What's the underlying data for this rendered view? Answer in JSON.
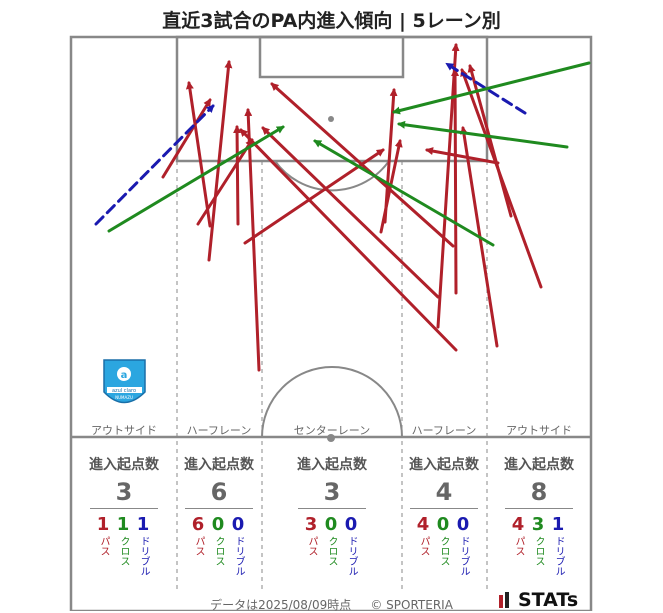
{
  "title": "直近3試合のPA内進入傾向 | 5レーン別",
  "footer": {
    "date_text": "データは2025/08/09時点",
    "copyright": "© SPORTERIA",
    "brand": "STATs"
  },
  "team_logo": {
    "name": "azul claro",
    "sub": "NUMAZU",
    "icon": "azul-claro-crest"
  },
  "colors": {
    "pass": "#b0202a",
    "cross": "#1f8a1f",
    "dribble": "#1a1ab0",
    "pitch_line": "#888888"
  },
  "stat_labels": {
    "header": "進入起点数",
    "pass": "パス",
    "cross": "クロス",
    "dribble": "ドリブル"
  },
  "chart_data": {
    "type": "flow-map",
    "title": "直近3試合のPA内進入傾向 | 5レーン別",
    "lanes": [
      {
        "name": "アウトサイド",
        "total": 3,
        "pass": 1,
        "cross": 1,
        "dribble": 1
      },
      {
        "name": "ハーフレーン",
        "total": 6,
        "pass": 6,
        "cross": 0,
        "dribble": 0
      },
      {
        "name": "センターレーン",
        "total": 3,
        "pass": 3,
        "cross": 0,
        "dribble": 0
      },
      {
        "name": "ハーフレーン",
        "total": 4,
        "pass": 4,
        "cross": 0,
        "dribble": 0
      },
      {
        "name": "アウトサイド",
        "total": 8,
        "pass": 4,
        "cross": 3,
        "dribble": 1
      }
    ],
    "arrows": [
      {
        "type": "dribble",
        "from": [
          96,
          224
        ],
        "to": [
          213,
          106
        ]
      },
      {
        "type": "cross",
        "from": [
          109,
          231
        ],
        "to": [
          283,
          127
        ]
      },
      {
        "type": "pass",
        "from": [
          163,
          177
        ],
        "to": [
          210,
          100
        ]
      },
      {
        "type": "pass",
        "from": [
          210,
          226
        ],
        "to": [
          189,
          83
        ]
      },
      {
        "type": "pass",
        "from": [
          198,
          224
        ],
        "to": [
          252,
          140
        ]
      },
      {
        "type": "pass",
        "from": [
          209,
          260
        ],
        "to": [
          229,
          62
        ]
      },
      {
        "type": "pass",
        "from": [
          238,
          224
        ],
        "to": [
          237,
          127
        ]
      },
      {
        "type": "pass",
        "from": [
          259,
          370
        ],
        "to": [
          248,
          110
        ]
      },
      {
        "type": "pass",
        "from": [
          245,
          243
        ],
        "to": [
          383,
          150
        ]
      },
      {
        "type": "pass",
        "from": [
          453,
          246
        ],
        "to": [
          272,
          84
        ]
      },
      {
        "type": "pass",
        "from": [
          456,
          350
        ],
        "to": [
          241,
          130
        ]
      },
      {
        "type": "pass",
        "from": [
          438,
          297
        ],
        "to": [
          263,
          128
        ]
      },
      {
        "type": "cross",
        "from": [
          493,
          245
        ],
        "to": [
          315,
          141
        ]
      },
      {
        "type": "pass",
        "from": [
          381,
          232
        ],
        "to": [
          400,
          141
        ]
      },
      {
        "type": "pass",
        "from": [
          385,
          222
        ],
        "to": [
          394,
          90
        ]
      },
      {
        "type": "pass",
        "from": [
          438,
          327
        ],
        "to": [
          456,
          45
        ]
      },
      {
        "type": "pass",
        "from": [
          456,
          293
        ],
        "to": [
          455,
          70
        ]
      },
      {
        "type": "pass",
        "from": [
          541,
          287
        ],
        "to": [
          462,
          70
        ]
      },
      {
        "type": "pass",
        "from": [
          497,
          346
        ],
        "to": [
          463,
          128
        ]
      },
      {
        "type": "pass",
        "from": [
          511,
          216
        ],
        "to": [
          470,
          66
        ]
      },
      {
        "type": "pass",
        "from": [
          498,
          163
        ],
        "to": [
          427,
          150
        ]
      },
      {
        "type": "cross",
        "from": [
          589,
          63
        ],
        "to": [
          394,
          112
        ]
      },
      {
        "type": "cross",
        "from": [
          567,
          147
        ],
        "to": [
          399,
          124
        ]
      },
      {
        "type": "dribble",
        "from": [
          525,
          113
        ],
        "to": [
          447,
          64
        ]
      }
    ]
  }
}
